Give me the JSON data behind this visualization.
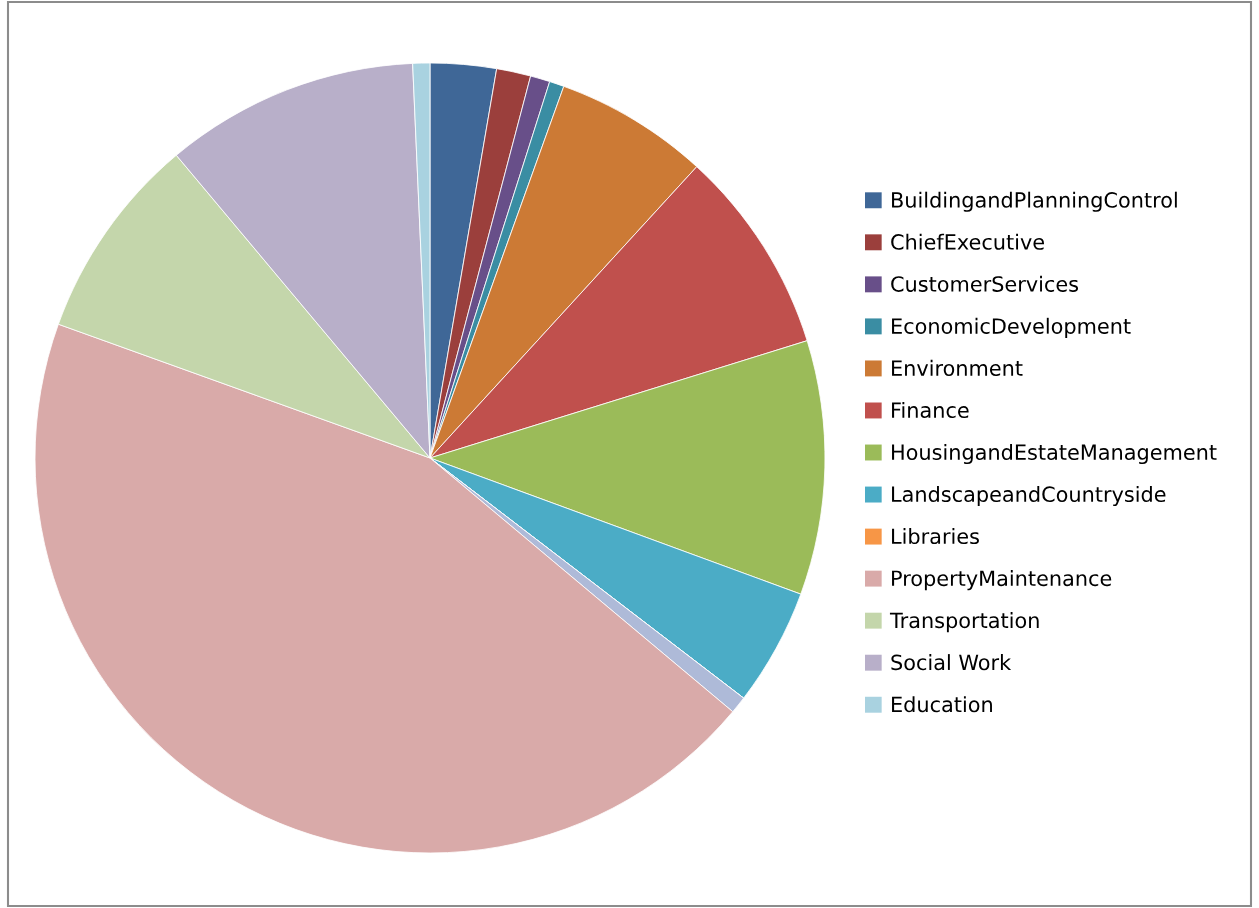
{
  "chart_data": {
    "type": "pie",
    "categories": [
      "BuildingandPlanningControl",
      "ChiefExecutive",
      "CustomerServices",
      "EconomicDevelopment",
      "Environment",
      "Finance",
      "HousingandEstateManagement",
      "LandscapeandCountryside",
      "Libraries",
      null,
      "PropertyMaintenance",
      "Transportation",
      "Social Work",
      "Education"
    ],
    "values": [
      2.7,
      1.4,
      0.8,
      0.6,
      6.3,
      8.4,
      10.4,
      4.8,
      0,
      0.7,
      44.4,
      8.4,
      10.4,
      0.7
    ],
    "colors": [
      "#3f6797",
      "#9b3f3c",
      "#684f89",
      "#3a8da3",
      "#cc7a35",
      "#c0504d",
      "#9bbb59",
      "#4bacc6",
      "#f79646",
      "#aebad8",
      "#d9aaa9",
      "#c4d6ab",
      "#b8afc9",
      "#a9d2e0"
    ],
    "legend": "right"
  }
}
